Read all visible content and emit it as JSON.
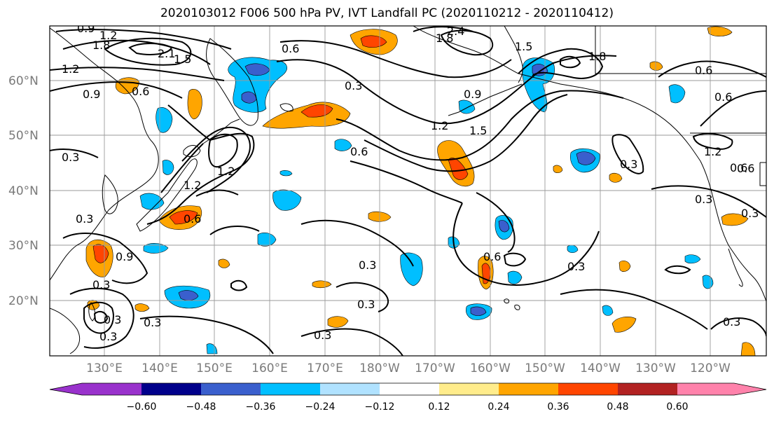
{
  "title": "2020103012 F006 500 hPa PV, IVT Landfall PC (2020110212 - 2020110412)",
  "map": {
    "lat_labels": [
      "60°N",
      "50°N",
      "40°N",
      "30°N",
      "20°N"
    ],
    "lon_labels": [
      "130°E",
      "140°E",
      "150°E",
      "160°E",
      "170°E",
      "180°W",
      "170°W",
      "160°W",
      "150°W",
      "140°W",
      "130°W",
      "120°W"
    ],
    "contour_labels": [
      "0.9",
      "1.2",
      "1.8",
      "2.1",
      "1.5",
      "1.2",
      "0.6",
      "0.3",
      "2.4",
      "1.8",
      "1.5",
      "1.8",
      "0.6",
      "0.6",
      "0.9",
      "0.6",
      "0.9",
      "1.2",
      "1.5",
      "0.6",
      "0.3",
      "1.2",
      "0.6",
      "0.3",
      "1.2",
      "1.2",
      "0.6",
      "0.3",
      "0.3",
      "0.9",
      "0.3",
      "0.3",
      "0.3",
      "0.3",
      "0.3",
      "0.3",
      "0.6",
      "0.3",
      "0.3",
      "0.3",
      "0.6",
      "0.3"
    ],
    "colors": {
      "coast": "#000000",
      "grid": "#9a9a9a",
      "contour": "#000000"
    }
  },
  "colorbar": {
    "tick_labels": [
      "−0.60",
      "−0.48",
      "−0.36",
      "−0.24",
      "−0.12",
      "0.12",
      "0.24",
      "0.36",
      "0.48",
      "0.60"
    ],
    "colors": [
      "#9932cc",
      "#00008b",
      "#3a5fcd",
      "#00bfff",
      "#b0e2ff",
      "#ffffff",
      "#ffec8b",
      "#ffa500",
      "#ff4500",
      "#b22222",
      "#ff82ab"
    ]
  }
}
